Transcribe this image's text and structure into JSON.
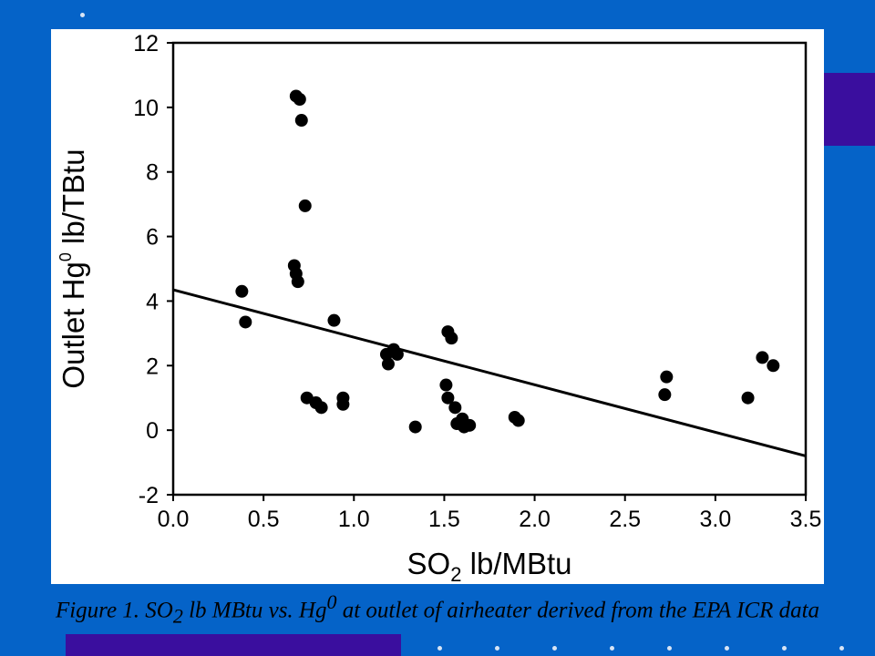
{
  "colors": {
    "background": "#0563c8",
    "accent": "#3a0e9e",
    "panel": "#ffffff",
    "ink": "#000000"
  },
  "chart_data": {
    "type": "scatter",
    "xlabel": "SO2 lb/MBtu",
    "ylabel": "Outlet Hg0 lb/TBtu",
    "xlim": [
      0.0,
      3.5
    ],
    "ylim": [
      -2,
      12
    ],
    "xticks": [
      "0.0",
      "0.5",
      "1.0",
      "1.5",
      "2.0",
      "2.5",
      "3.0",
      "3.5"
    ],
    "yticks": [
      "-2",
      "0",
      "2",
      "4",
      "6",
      "8",
      "10",
      "12"
    ],
    "grid": false,
    "points": [
      {
        "x": 0.38,
        "y": 4.3
      },
      {
        "x": 0.4,
        "y": 3.35
      },
      {
        "x": 0.68,
        "y": 10.35
      },
      {
        "x": 0.7,
        "y": 10.25
      },
      {
        "x": 0.71,
        "y": 9.6
      },
      {
        "x": 0.73,
        "y": 6.95
      },
      {
        "x": 0.67,
        "y": 5.1
      },
      {
        "x": 0.68,
        "y": 4.85
      },
      {
        "x": 0.69,
        "y": 4.6
      },
      {
        "x": 0.74,
        "y": 1.0
      },
      {
        "x": 0.79,
        "y": 0.85
      },
      {
        "x": 0.82,
        "y": 0.7
      },
      {
        "x": 0.89,
        "y": 3.4
      },
      {
        "x": 0.94,
        "y": 1.0
      },
      {
        "x": 0.94,
        "y": 0.8
      },
      {
        "x": 1.18,
        "y": 2.35
      },
      {
        "x": 1.19,
        "y": 2.05
      },
      {
        "x": 1.22,
        "y": 2.5
      },
      {
        "x": 1.24,
        "y": 2.35
      },
      {
        "x": 1.34,
        "y": 0.1
      },
      {
        "x": 1.52,
        "y": 3.05
      },
      {
        "x": 1.54,
        "y": 2.85
      },
      {
        "x": 1.51,
        "y": 1.4
      },
      {
        "x": 1.52,
        "y": 1.0
      },
      {
        "x": 1.56,
        "y": 0.7
      },
      {
        "x": 1.57,
        "y": 0.2
      },
      {
        "x": 1.6,
        "y": 0.35
      },
      {
        "x": 1.61,
        "y": 0.1
      },
      {
        "x": 1.64,
        "y": 0.15
      },
      {
        "x": 1.89,
        "y": 0.4
      },
      {
        "x": 1.91,
        "y": 0.3
      },
      {
        "x": 2.72,
        "y": 1.1
      },
      {
        "x": 2.73,
        "y": 1.65
      },
      {
        "x": 3.18,
        "y": 1.0
      },
      {
        "x": 3.26,
        "y": 2.25
      },
      {
        "x": 3.32,
        "y": 2.0
      }
    ],
    "trendline": {
      "x": [
        0.0,
        3.5
      ],
      "y": [
        4.35,
        -0.8
      ]
    }
  },
  "caption": {
    "part1": "Figure 1. SO",
    "sub": "2",
    "part2": " lb MBtu vs. Hg",
    "sup": "0",
    "part3": " at outlet of airheater derived from the EPA ICR data"
  }
}
